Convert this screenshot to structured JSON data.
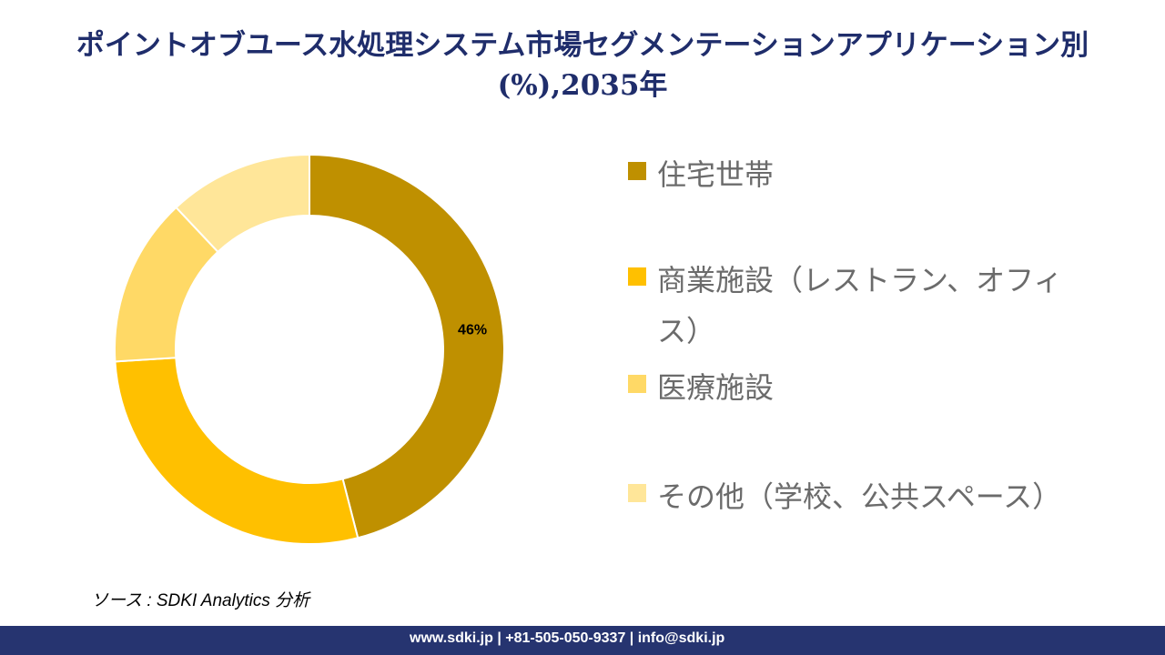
{
  "title": "ポイントオブユース水処理システム市場セグメンテーションアプリケーション別(%),2035年",
  "chart_data": {
    "type": "pie",
    "donut": true,
    "title": "ポイントオブユース水処理システム市場セグメンテーションアプリケーション別(%),2035年",
    "categories": [
      "住宅世帯",
      "商業施設（レストラン、オフィス）",
      "医療施設",
      "その他（学校、公共スペース）"
    ],
    "values": [
      46,
      28,
      14,
      12
    ],
    "data_labels": [
      "46%",
      "",
      "",
      ""
    ],
    "colors": [
      "#BF9000",
      "#FFC000",
      "#FFD966",
      "#FFE699"
    ],
    "legend_placement": "right"
  },
  "source": "ソース : SDKI Analytics 分析",
  "footer": "www.sdki.jp | +81-505-050-9337 | info@sdki.jp"
}
